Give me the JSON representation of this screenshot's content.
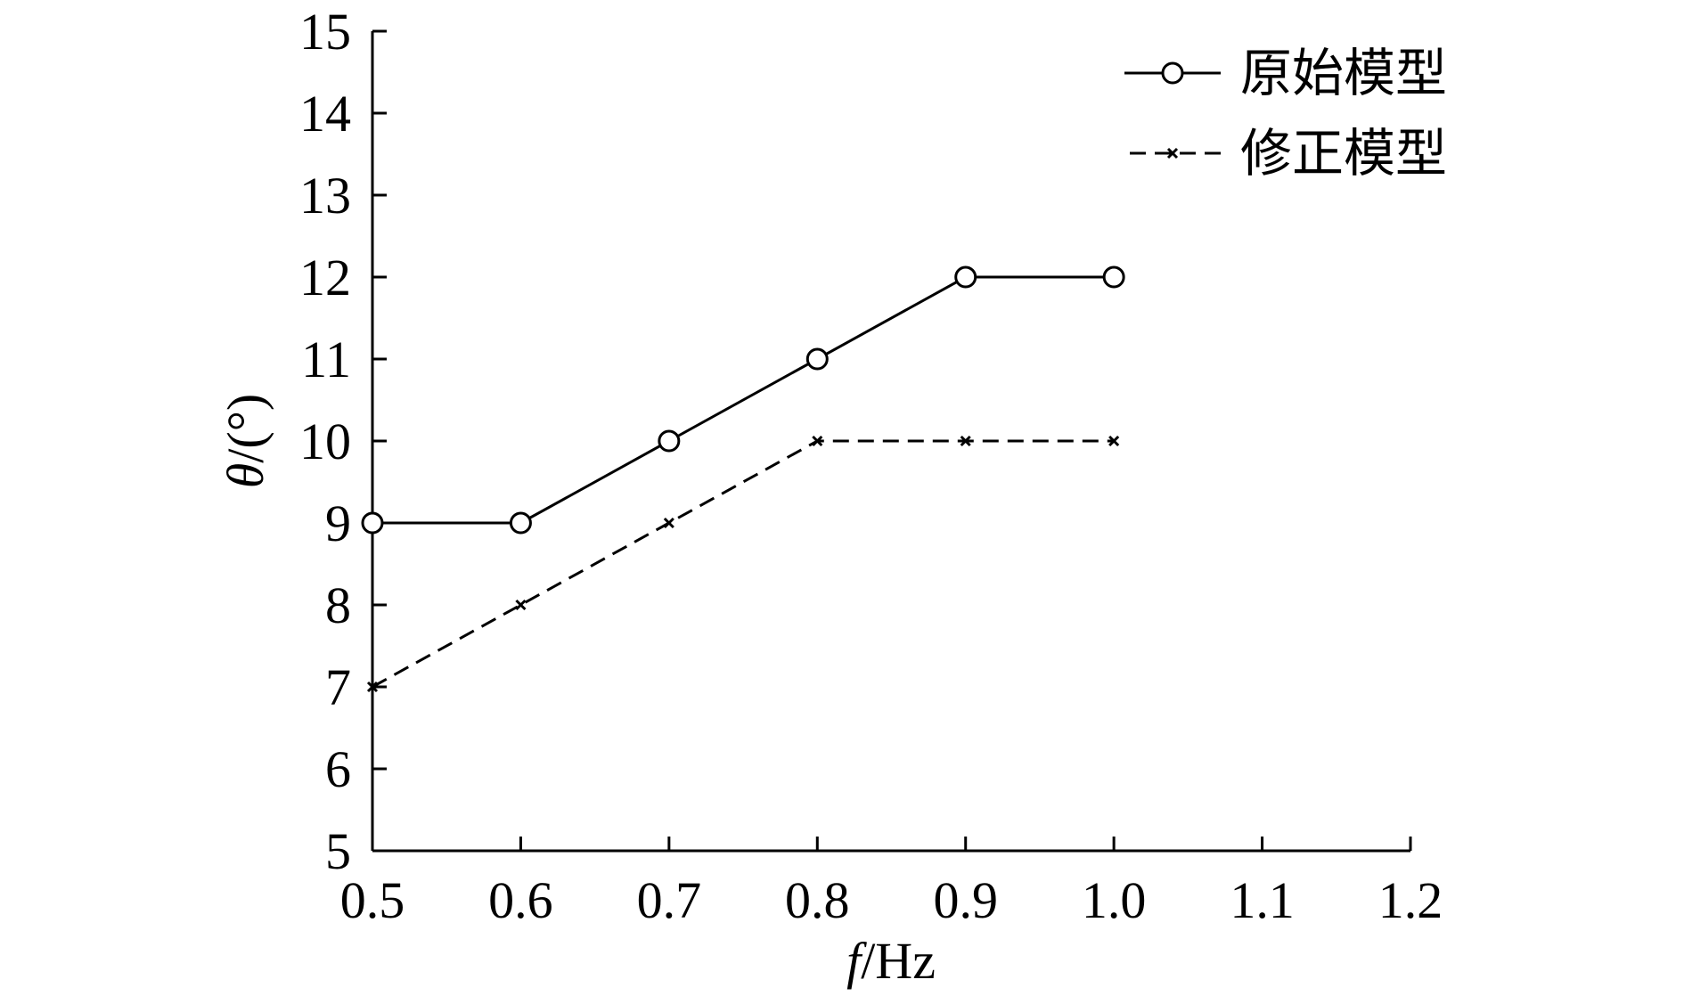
{
  "chart_data": {
    "type": "line",
    "title": "",
    "xlabel_italic": "f",
    "xlabel_unit": "/Hz",
    "ylabel_italic": "θ",
    "ylabel_unit": "/(°)",
    "xlim": [
      0.5,
      1.2
    ],
    "ylim": [
      5,
      15
    ],
    "xticks": [
      0.5,
      0.6,
      0.7,
      0.8,
      0.9,
      1.0,
      1.1,
      1.2
    ],
    "xtick_labels": [
      "0.5",
      "0.6",
      "0.7",
      "0.8",
      "0.9",
      "1.0",
      "1.1",
      "1.2"
    ],
    "yticks": [
      5,
      6,
      7,
      8,
      9,
      10,
      11,
      12,
      13,
      14,
      15
    ],
    "ytick_labels": [
      "5",
      "6",
      "7",
      "8",
      "9",
      "10",
      "11",
      "12",
      "13",
      "14",
      "15"
    ],
    "grid": false,
    "legend_position": "top-right",
    "series": [
      {
        "name": "原始模型",
        "style": "solid",
        "marker": "circle",
        "color": "#000000",
        "x": [
          0.5,
          0.6,
          0.7,
          0.8,
          0.9,
          1.0
        ],
        "y": [
          9,
          9,
          10,
          11,
          12,
          12
        ]
      },
      {
        "name": "修正模型",
        "style": "dashed",
        "marker": "x",
        "color": "#000000",
        "x": [
          0.5,
          0.6,
          0.7,
          0.8,
          0.9,
          1.0
        ],
        "y": [
          7,
          8,
          9,
          10,
          10,
          10
        ]
      }
    ]
  }
}
